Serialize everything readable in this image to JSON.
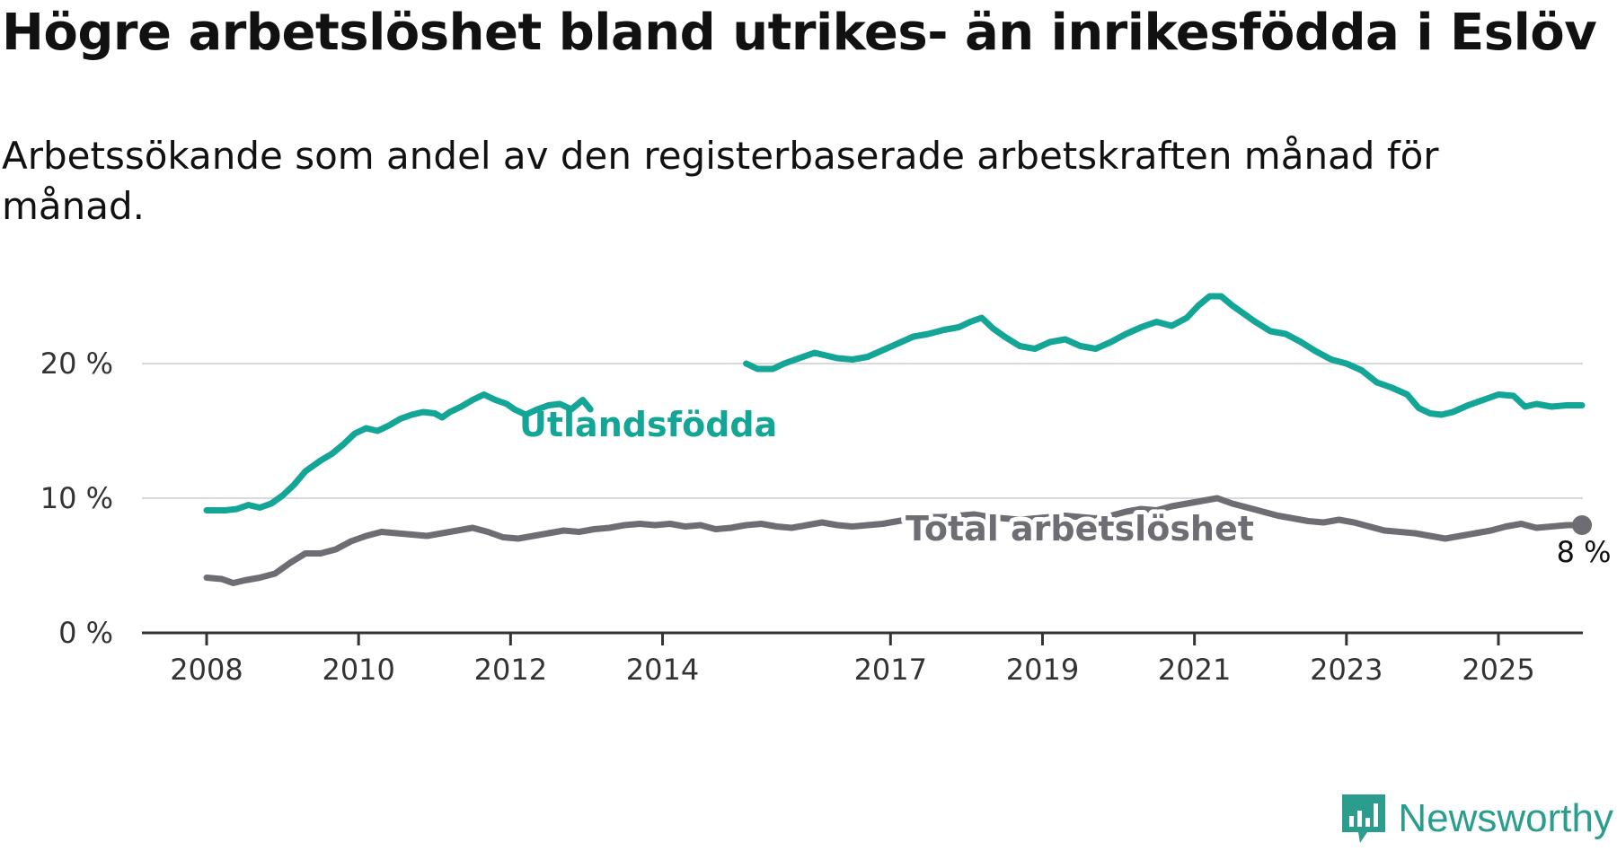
{
  "title": "Högre arbetslöshet bland utrikes- än inrikesfödda i Eslöv",
  "subtitle": "Arbetssökande som andel av den registerbaserade arbetskraften månad för månad.",
  "brand": "Newsworthy",
  "colors": {
    "foreign": "#13a596",
    "total": "#6f6d74",
    "grid": "#d9d9d9",
    "axis": "#333333"
  },
  "chart_data": {
    "type": "line",
    "title": "Högre arbetslöshet bland utrikes- än inrikesfödda i Eslöv",
    "subtitle": "Arbetssökande som andel av den registerbaserade arbetskraften månad för månad.",
    "xlabel": "",
    "ylabel": "",
    "xlim": [
      2008,
      2026
    ],
    "ylim": [
      0,
      25
    ],
    "x_ticks": [
      2008,
      2010,
      2012,
      2014,
      2017,
      2019,
      2021,
      2023,
      2025
    ],
    "x_tick_labels": [
      "2008",
      "2010",
      "2012",
      "2014",
      "2017",
      "2019",
      "2021",
      "2023",
      "2025"
    ],
    "y_ticks": [
      0,
      10,
      20
    ],
    "y_tick_labels": [
      "0 %",
      "10 %",
      "20 %"
    ],
    "grid": true,
    "end_label": "8 %",
    "series": [
      {
        "name": "Utlandsfödda",
        "segments": [
          [
            [
              2008.0,
              9.1
            ],
            [
              2008.25,
              9.1
            ],
            [
              2008.4,
              9.2
            ],
            [
              2008.55,
              9.5
            ],
            [
              2008.7,
              9.3
            ],
            [
              2008.85,
              9.6
            ],
            [
              2009.0,
              10.2
            ],
            [
              2009.15,
              11.0
            ],
            [
              2009.3,
              12.0
            ],
            [
              2009.5,
              12.8
            ],
            [
              2009.65,
              13.3
            ],
            [
              2009.8,
              14.0
            ],
            [
              2009.95,
              14.8
            ],
            [
              2010.1,
              15.2
            ],
            [
              2010.25,
              15.0
            ],
            [
              2010.4,
              15.4
            ],
            [
              2010.55,
              15.9
            ],
            [
              2010.7,
              16.2
            ],
            [
              2010.85,
              16.4
            ],
            [
              2011.0,
              16.3
            ],
            [
              2011.1,
              16.0
            ],
            [
              2011.2,
              16.4
            ],
            [
              2011.35,
              16.8
            ],
            [
              2011.5,
              17.3
            ],
            [
              2011.65,
              17.7
            ],
            [
              2011.8,
              17.3
            ],
            [
              2011.95,
              17.0
            ],
            [
              2012.05,
              16.6
            ],
            [
              2012.2,
              16.2
            ],
            [
              2012.35,
              16.6
            ],
            [
              2012.5,
              16.9
            ],
            [
              2012.65,
              17.0
            ],
            [
              2012.8,
              16.6
            ],
            [
              2012.95,
              17.3
            ],
            [
              2013.05,
              16.6
            ]
          ],
          [
            [
              2015.1,
              20.0
            ],
            [
              2015.25,
              19.6
            ],
            [
              2015.45,
              19.6
            ],
            [
              2015.6,
              20.0
            ],
            [
              2015.8,
              20.4
            ],
            [
              2016.0,
              20.8
            ],
            [
              2016.15,
              20.6
            ],
            [
              2016.3,
              20.4
            ],
            [
              2016.5,
              20.3
            ],
            [
              2016.7,
              20.5
            ],
            [
              2016.9,
              21.0
            ],
            [
              2017.1,
              21.5
            ],
            [
              2017.3,
              22.0
            ],
            [
              2017.5,
              22.2
            ],
            [
              2017.7,
              22.5
            ],
            [
              2017.9,
              22.7
            ],
            [
              2018.05,
              23.1
            ],
            [
              2018.2,
              23.4
            ],
            [
              2018.35,
              22.6
            ],
            [
              2018.5,
              22.0
            ],
            [
              2018.7,
              21.3
            ],
            [
              2018.9,
              21.1
            ],
            [
              2019.1,
              21.6
            ],
            [
              2019.3,
              21.8
            ],
            [
              2019.5,
              21.3
            ],
            [
              2019.7,
              21.1
            ],
            [
              2019.9,
              21.6
            ],
            [
              2020.1,
              22.2
            ],
            [
              2020.3,
              22.7
            ],
            [
              2020.5,
              23.1
            ],
            [
              2020.7,
              22.8
            ],
            [
              2020.9,
              23.4
            ],
            [
              2021.05,
              24.3
            ],
            [
              2021.2,
              25.0
            ],
            [
              2021.35,
              25.0
            ],
            [
              2021.5,
              24.3
            ],
            [
              2021.65,
              23.7
            ],
            [
              2021.8,
              23.1
            ],
            [
              2022.0,
              22.4
            ],
            [
              2022.2,
              22.2
            ],
            [
              2022.4,
              21.6
            ],
            [
              2022.6,
              20.9
            ],
            [
              2022.8,
              20.3
            ],
            [
              2023.0,
              20.0
            ],
            [
              2023.2,
              19.5
            ],
            [
              2023.4,
              18.6
            ],
            [
              2023.6,
              18.2
            ],
            [
              2023.8,
              17.7
            ],
            [
              2023.95,
              16.7
            ],
            [
              2024.1,
              16.3
            ],
            [
              2024.25,
              16.2
            ],
            [
              2024.4,
              16.4
            ],
            [
              2024.6,
              16.9
            ],
            [
              2024.8,
              17.3
            ],
            [
              2025.0,
              17.7
            ],
            [
              2025.2,
              17.6
            ],
            [
              2025.35,
              16.8
            ],
            [
              2025.5,
              17.0
            ],
            [
              2025.7,
              16.8
            ],
            [
              2025.9,
              16.9
            ],
            [
              2026.1,
              16.9
            ]
          ]
        ]
      },
      {
        "name": "Total arbetslöshet",
        "segments": [
          [
            [
              2008.0,
              4.1
            ],
            [
              2008.2,
              4.0
            ],
            [
              2008.35,
              3.7
            ],
            [
              2008.5,
              3.9
            ],
            [
              2008.7,
              4.1
            ],
            [
              2008.9,
              4.4
            ],
            [
              2009.1,
              5.2
            ],
            [
              2009.3,
              5.9
            ],
            [
              2009.5,
              5.9
            ],
            [
              2009.7,
              6.2
            ],
            [
              2009.9,
              6.8
            ],
            [
              2010.1,
              7.2
            ],
            [
              2010.3,
              7.5
            ],
            [
              2010.5,
              7.4
            ],
            [
              2010.7,
              7.3
            ],
            [
              2010.9,
              7.2
            ],
            [
              2011.1,
              7.4
            ],
            [
              2011.3,
              7.6
            ],
            [
              2011.5,
              7.8
            ],
            [
              2011.7,
              7.5
            ],
            [
              2011.9,
              7.1
            ],
            [
              2012.1,
              7.0
            ],
            [
              2012.3,
              7.2
            ],
            [
              2012.5,
              7.4
            ],
            [
              2012.7,
              7.6
            ],
            [
              2012.9,
              7.5
            ],
            [
              2013.1,
              7.7
            ],
            [
              2013.3,
              7.8
            ],
            [
              2013.5,
              8.0
            ],
            [
              2013.7,
              8.1
            ],
            [
              2013.9,
              8.0
            ],
            [
              2014.1,
              8.1
            ],
            [
              2014.3,
              7.9
            ],
            [
              2014.5,
              8.0
            ],
            [
              2014.7,
              7.7
            ],
            [
              2014.9,
              7.8
            ],
            [
              2015.1,
              8.0
            ],
            [
              2015.3,
              8.1
            ],
            [
              2015.5,
              7.9
            ],
            [
              2015.7,
              7.8
            ],
            [
              2015.9,
              8.0
            ],
            [
              2016.1,
              8.2
            ],
            [
              2016.3,
              8.0
            ],
            [
              2016.5,
              7.9
            ],
            [
              2016.7,
              8.0
            ],
            [
              2016.9,
              8.1
            ],
            [
              2017.1,
              8.3
            ],
            [
              2017.3,
              8.5
            ],
            [
              2017.5,
              8.6
            ],
            [
              2017.7,
              8.6
            ],
            [
              2017.9,
              8.7
            ],
            [
              2018.1,
              8.8
            ],
            [
              2018.3,
              8.6
            ],
            [
              2018.5,
              8.5
            ],
            [
              2018.7,
              8.4
            ],
            [
              2018.9,
              8.5
            ],
            [
              2019.1,
              8.6
            ],
            [
              2019.3,
              8.7
            ],
            [
              2019.5,
              8.6
            ],
            [
              2019.7,
              8.5
            ],
            [
              2019.9,
              8.7
            ],
            [
              2020.1,
              9.0
            ],
            [
              2020.3,
              9.2
            ],
            [
              2020.5,
              9.1
            ],
            [
              2020.7,
              9.4
            ],
            [
              2020.9,
              9.6
            ],
            [
              2021.1,
              9.8
            ],
            [
              2021.3,
              10.0
            ],
            [
              2021.5,
              9.6
            ],
            [
              2021.7,
              9.3
            ],
            [
              2021.9,
              9.0
            ],
            [
              2022.1,
              8.7
            ],
            [
              2022.3,
              8.5
            ],
            [
              2022.5,
              8.3
            ],
            [
              2022.7,
              8.2
            ],
            [
              2022.9,
              8.4
            ],
            [
              2023.1,
              8.2
            ],
            [
              2023.3,
              7.9
            ],
            [
              2023.5,
              7.6
            ],
            [
              2023.7,
              7.5
            ],
            [
              2023.9,
              7.4
            ],
            [
              2024.1,
              7.2
            ],
            [
              2024.3,
              7.0
            ],
            [
              2024.5,
              7.2
            ],
            [
              2024.7,
              7.4
            ],
            [
              2024.9,
              7.6
            ],
            [
              2025.1,
              7.9
            ],
            [
              2025.3,
              8.1
            ],
            [
              2025.5,
              7.8
            ],
            [
              2025.7,
              7.9
            ],
            [
              2025.9,
              8.0
            ],
            [
              2026.1,
              8.0
            ]
          ]
        ]
      }
    ]
  }
}
